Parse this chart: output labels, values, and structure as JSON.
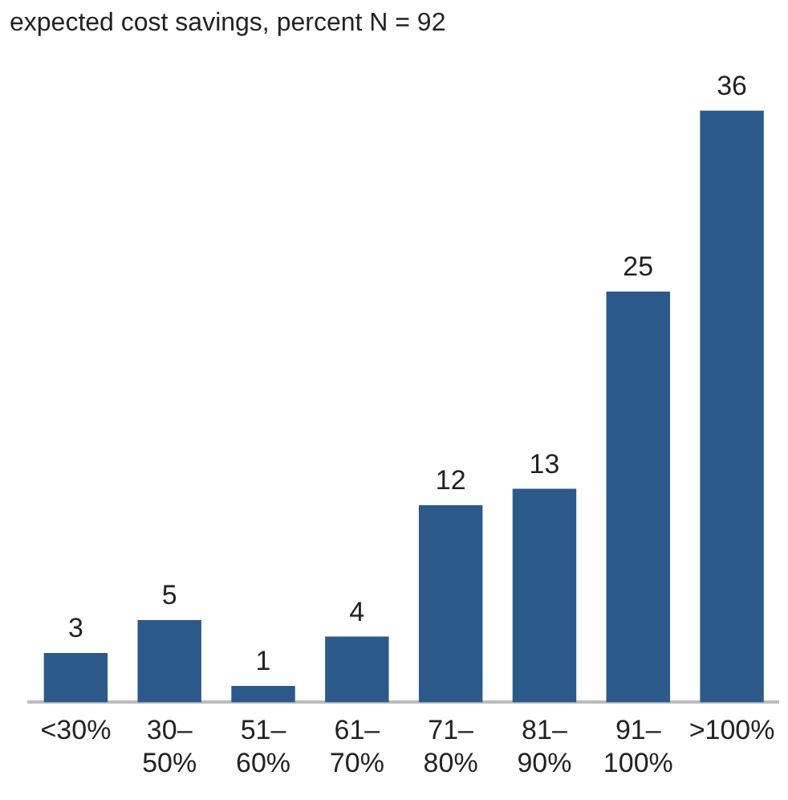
{
  "chart_data": {
    "type": "bar",
    "title": "expected cost savings, percent N = 92",
    "categories": [
      "<30%",
      "30–50%",
      "51–60%",
      "61–70%",
      "71–80%",
      "81–90%",
      "91–100%",
      ">100%"
    ],
    "values": [
      3,
      5,
      1,
      4,
      12,
      13,
      25,
      36
    ],
    "color": "#2b5a8a",
    "data_labels": true,
    "grid": false,
    "legend": false
  }
}
